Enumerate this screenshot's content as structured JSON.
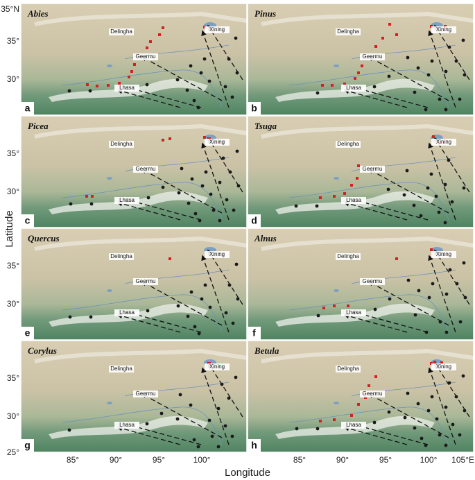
{
  "panels": [
    {
      "letter": "a",
      "genus": "Abies"
    },
    {
      "letter": "b",
      "genus": "Pinus"
    },
    {
      "letter": "c",
      "genus": "Picea"
    },
    {
      "letter": "d",
      "genus": "Tsuga"
    },
    {
      "letter": "e",
      "genus": "Quercus"
    },
    {
      "letter": "f",
      "genus": "Alnus"
    },
    {
      "letter": "g",
      "genus": "Corylus"
    },
    {
      "letter": "h",
      "genus": "Betula"
    }
  ],
  "cities": [
    "Delingha",
    "Xining",
    "Geermu",
    "Lhasa"
  ],
  "x_axis": {
    "label": "Longitude",
    "ticks": [
      "85°",
      "90°",
      "95°",
      "100°"
    ],
    "end_tick": "105°E"
  },
  "y_axis": {
    "label": "Latitude",
    "top_tick": "35°N",
    "ticks": [
      "35°",
      "30°"
    ],
    "bottom_tick": "25°"
  }
}
